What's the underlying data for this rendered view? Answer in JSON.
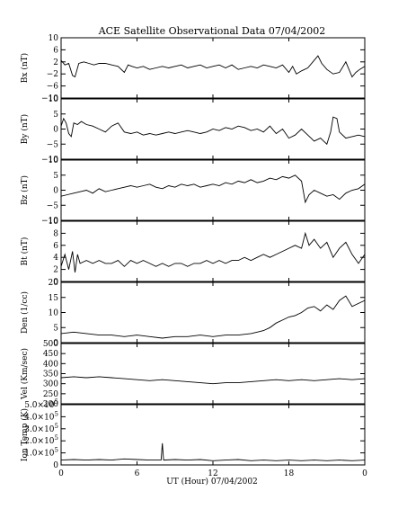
{
  "chart_data": {
    "type": "line",
    "title": "ACE Satellite Observational Data   07/04/2002",
    "xlabel": "UT (Hour)  07/04/2002",
    "x_ticks": [
      "0",
      "6",
      "12",
      "18",
      "0"
    ],
    "xlim": [
      0,
      24
    ],
    "panels": [
      {
        "id": "bx",
        "ylabel": "Bx (nT)",
        "ylim": [
          -10,
          10
        ],
        "y_ticks": [
          {
            "v": 10,
            "t": "10"
          },
          {
            "v": 6,
            "t": "6"
          },
          {
            "v": 2,
            "t": "2"
          },
          {
            "v": -2,
            "t": "−2"
          },
          {
            "v": -6,
            "t": "−6"
          },
          {
            "v": -10,
            "t": "−10"
          }
        ],
        "x": [
          0,
          0.3,
          0.6,
          0.9,
          1.1,
          1.4,
          1.8,
          2.2,
          2.6,
          3,
          3.5,
          4,
          4.5,
          5,
          5.3,
          5.6,
          6,
          6.5,
          7,
          7.5,
          8,
          8.5,
          9,
          9.5,
          10,
          10.5,
          11,
          11.5,
          12,
          12.5,
          13,
          13.5,
          14,
          14.5,
          15,
          15.5,
          16,
          16.5,
          17,
          17.5,
          18,
          18.3,
          18.6,
          19,
          19.5,
          20,
          20.3,
          20.6,
          21,
          21.5,
          22,
          22.5,
          23,
          23.3,
          23.6,
          24
        ],
        "y": [
          2.5,
          1.0,
          1.5,
          -2.5,
          -3.0,
          1.5,
          2.0,
          1.5,
          1.0,
          1.5,
          1.5,
          1.0,
          0.5,
          -1.5,
          1.0,
          0.5,
          0.0,
          0.5,
          -0.5,
          0.0,
          0.5,
          0.0,
          0.5,
          1.0,
          0.0,
          0.5,
          1.0,
          0.0,
          0.5,
          1.0,
          0.0,
          1.0,
          -0.5,
          0.0,
          0.5,
          0.0,
          1.0,
          0.5,
          0.0,
          1.0,
          -1.5,
          0.5,
          -2.0,
          -1.0,
          0.0,
          2.5,
          4.0,
          1.5,
          -0.5,
          -2.0,
          -1.5,
          2.0,
          -3.0,
          -1.5,
          -0.5,
          0.5
        ]
      },
      {
        "id": "by",
        "ylabel": "By (nT)",
        "ylim": [
          -10,
          10
        ],
        "y_ticks": [
          {
            "v": 10,
            "t": "10"
          },
          {
            "v": 5,
            "t": "5"
          },
          {
            "v": 0,
            "t": "0"
          },
          {
            "v": -5,
            "t": "−5"
          },
          {
            "v": -10,
            "t": "−10"
          }
        ],
        "x": [
          0,
          0.2,
          0.4,
          0.6,
          0.8,
          1.0,
          1.3,
          1.6,
          2,
          2.5,
          3,
          3.5,
          4,
          4.5,
          5,
          5.5,
          6,
          6.5,
          7,
          7.5,
          8,
          8.5,
          9,
          9.5,
          10,
          10.5,
          11,
          11.5,
          12,
          12.5,
          13,
          13.5,
          14,
          14.5,
          15,
          15.5,
          16,
          16.5,
          17,
          17.5,
          18,
          18.5,
          19,
          19.5,
          20,
          20.5,
          21,
          21.3,
          21.5,
          21.8,
          22,
          22.5,
          23,
          23.5,
          24
        ],
        "y": [
          1.0,
          3.5,
          2.0,
          -1.5,
          -2.5,
          2.0,
          1.5,
          2.5,
          1.5,
          1.0,
          0.0,
          -1.0,
          1.0,
          2.0,
          -1.0,
          -1.5,
          -1.0,
          -2.0,
          -1.5,
          -2.0,
          -1.5,
          -1.0,
          -1.5,
          -1.0,
          -0.5,
          -1.0,
          -1.5,
          -1.0,
          0.0,
          -0.5,
          0.5,
          0.0,
          1.0,
          0.5,
          -0.5,
          0.0,
          -1.0,
          1.0,
          -1.5,
          0.0,
          -3.0,
          -2.0,
          0.0,
          -2.0,
          -4.0,
          -3.0,
          -5.0,
          -1.0,
          4.0,
          3.5,
          -1.0,
          -3.0,
          -2.5,
          -2.0,
          -2.5
        ]
      },
      {
        "id": "bz",
        "ylabel": "Bz (nT)",
        "ylim": [
          -10,
          10
        ],
        "y_ticks": [
          {
            "v": 10,
            "t": "10"
          },
          {
            "v": 5,
            "t": "5"
          },
          {
            "v": 0,
            "t": "0"
          },
          {
            "v": -5,
            "t": "−5"
          },
          {
            "v": -10,
            "t": "−10"
          }
        ],
        "x": [
          0,
          0.5,
          1,
          1.5,
          2,
          2.5,
          3,
          3.5,
          4,
          4.5,
          5,
          5.5,
          6,
          6.5,
          7,
          7.5,
          8,
          8.5,
          9,
          9.5,
          10,
          10.5,
          11,
          11.5,
          12,
          12.5,
          13,
          13.5,
          14,
          14.5,
          15,
          15.5,
          16,
          16.5,
          17,
          17.5,
          18,
          18.5,
          19,
          19.3,
          19.6,
          20,
          20.5,
          21,
          21.5,
          22,
          22.5,
          23,
          23.5,
          24
        ],
        "y": [
          -2.0,
          -1.5,
          -1.0,
          -0.5,
          0.0,
          -1.0,
          0.5,
          -0.5,
          0.0,
          0.5,
          1.0,
          1.5,
          1.0,
          1.5,
          2.0,
          1.0,
          0.5,
          1.5,
          1.0,
          2.0,
          1.5,
          2.0,
          1.0,
          1.5,
          2.0,
          1.5,
          2.5,
          2.0,
          3.0,
          2.5,
          3.5,
          2.5,
          3.0,
          4.0,
          3.5,
          4.5,
          4.0,
          5.0,
          3.0,
          -4.0,
          -1.5,
          0.0,
          -1.0,
          -2.0,
          -1.5,
          -3.0,
          -1.0,
          0.0,
          0.5,
          2.0
        ]
      },
      {
        "id": "bt",
        "ylabel": "Bt (nT)",
        "ylim": [
          0,
          10
        ],
        "y_ticks": [
          {
            "v": 10,
            "t": "10"
          },
          {
            "v": 8,
            "t": "8"
          },
          {
            "v": 6,
            "t": "6"
          },
          {
            "v": 4,
            "t": "4"
          },
          {
            "v": 2,
            "t": "2"
          },
          {
            "v": 0,
            "t": "0"
          }
        ],
        "x": [
          0,
          0.3,
          0.6,
          0.9,
          1.1,
          1.3,
          1.5,
          2,
          2.5,
          3,
          3.5,
          4,
          4.5,
          5,
          5.5,
          6,
          6.5,
          7,
          7.5,
          8,
          8.5,
          9,
          9.5,
          10,
          10.5,
          11,
          11.5,
          12,
          12.5,
          13,
          13.5,
          14,
          14.5,
          15,
          15.5,
          16,
          16.5,
          17,
          17.5,
          18,
          18.5,
          19,
          19.3,
          19.6,
          20,
          20.5,
          21,
          21.5,
          22,
          22.5,
          23,
          23.5,
          24
        ],
        "y": [
          2.5,
          4.5,
          2.0,
          5.0,
          1.5,
          4.5,
          3.0,
          3.5,
          3.0,
          3.5,
          3.0,
          3.0,
          3.5,
          2.5,
          3.5,
          3.0,
          3.5,
          3.0,
          2.5,
          3.0,
          2.5,
          3.0,
          3.0,
          2.5,
          3.0,
          3.0,
          3.5,
          3.0,
          3.5,
          3.0,
          3.5,
          3.5,
          4.0,
          3.5,
          4.0,
          4.5,
          4.0,
          4.5,
          5.0,
          5.5,
          6.0,
          5.5,
          8.0,
          6.0,
          7.0,
          5.5,
          6.5,
          4.0,
          5.5,
          6.5,
          4.5,
          3.0,
          4.5
        ]
      },
      {
        "id": "den",
        "ylabel": "Den (1/cc)",
        "ylim": [
          0,
          20
        ],
        "y_ticks": [
          {
            "v": 20,
            "t": "20"
          },
          {
            "v": 15,
            "t": "15"
          },
          {
            "v": 10,
            "t": "10"
          },
          {
            "v": 5,
            "t": "5"
          },
          {
            "v": 0,
            "t": "0"
          }
        ],
        "x": [
          0,
          1,
          2,
          3,
          4,
          5,
          6,
          7,
          8,
          9,
          10,
          11,
          12,
          13,
          14,
          15,
          15.5,
          16,
          16.5,
          17,
          17.5,
          18,
          18.5,
          19,
          19.5,
          20,
          20.5,
          21,
          21.5,
          22,
          22.5,
          23,
          23.5,
          24
        ],
        "y": [
          3.0,
          3.5,
          3.0,
          2.5,
          2.5,
          2.0,
          2.5,
          2.0,
          1.5,
          2.0,
          2.0,
          2.5,
          2.0,
          2.5,
          2.5,
          3.0,
          3.5,
          4.0,
          5.0,
          6.5,
          7.5,
          8.5,
          9.0,
          10.0,
          11.5,
          12.0,
          10.5,
          12.5,
          11.0,
          14.0,
          15.5,
          12.0,
          13.0,
          14.0
        ]
      },
      {
        "id": "vel",
        "ylabel": "Vel (Km/sec)",
        "ylim": [
          200,
          500
        ],
        "y_ticks": [
          {
            "v": 500,
            "t": "500"
          },
          {
            "v": 450,
            "t": "450"
          },
          {
            "v": 400,
            "t": "400"
          },
          {
            "v": 350,
            "t": "350"
          },
          {
            "v": 300,
            "t": "300"
          },
          {
            "v": 250,
            "t": "250"
          },
          {
            "v": 200,
            "t": "200"
          }
        ],
        "x": [
          0,
          1,
          2,
          3,
          4,
          5,
          6,
          7,
          8,
          9,
          10,
          11,
          12,
          13,
          14,
          15,
          16,
          17,
          18,
          19,
          20,
          21,
          22,
          23,
          24
        ],
        "y": [
          330,
          335,
          330,
          335,
          330,
          325,
          320,
          315,
          320,
          315,
          310,
          305,
          300,
          305,
          305,
          310,
          315,
          320,
          315,
          320,
          315,
          320,
          325,
          320,
          325
        ]
      },
      {
        "id": "temp",
        "ylabel": "Ion Temp (K)",
        "ylim": [
          0,
          500000
        ],
        "y_ticks": [
          {
            "v": 500000,
            "m": "5.0×10",
            "e": "5"
          },
          {
            "v": 400000,
            "m": "4.0×10",
            "e": "5"
          },
          {
            "v": 300000,
            "m": "3.0×10",
            "e": "5"
          },
          {
            "v": 200000,
            "m": "2.0×10",
            "e": "5"
          },
          {
            "v": 100000,
            "m": "1.0×10",
            "e": "5"
          },
          {
            "v": 0,
            "m": "0",
            "e": ""
          }
        ],
        "x": [
          0,
          1,
          2,
          3,
          4,
          5,
          6,
          7,
          7.9,
          8.0,
          8.1,
          9,
          10,
          11,
          12,
          13,
          14,
          15,
          16,
          17,
          18,
          19,
          20,
          21,
          22,
          23,
          24
        ],
        "y": [
          40000,
          45000,
          40000,
          45000,
          40000,
          50000,
          45000,
          40000,
          40000,
          180000,
          40000,
          45000,
          40000,
          45000,
          35000,
          40000,
          45000,
          35000,
          40000,
          35000,
          40000,
          35000,
          40000,
          35000,
          40000,
          35000,
          40000
        ]
      }
    ]
  }
}
